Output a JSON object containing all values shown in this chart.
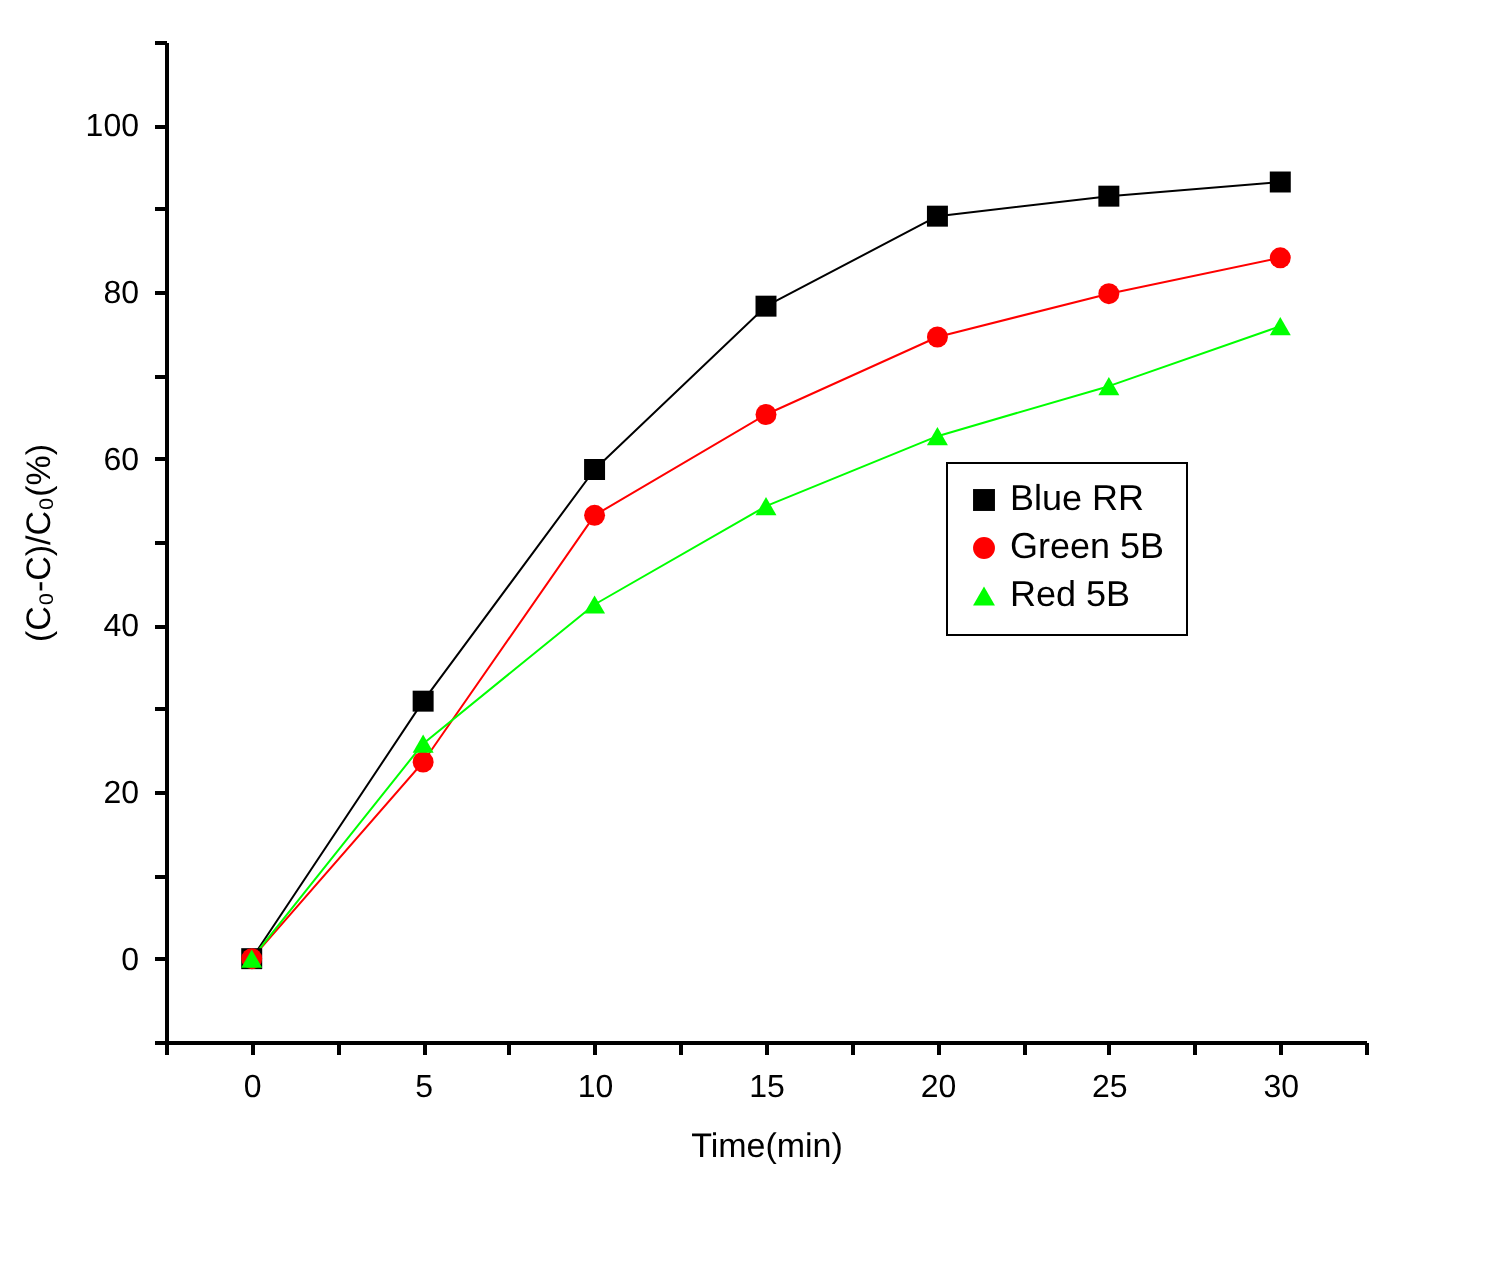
{
  "chart_data": {
    "type": "line",
    "xlabel": "Time(min)",
    "ylabel": "(C₀-C)/C₀(%)",
    "x": [
      0,
      5,
      10,
      15,
      20,
      25,
      30
    ],
    "series": [
      {
        "name": "Blue RR",
        "color": "#000000",
        "marker": "square",
        "values": [
          0,
          30.9,
          58.7,
          78.3,
          89.1,
          91.5,
          93.2
        ]
      },
      {
        "name": "Green 5B",
        "color": "#ff0000",
        "marker": "circle",
        "values": [
          0,
          23.6,
          53.2,
          65.3,
          74.6,
          79.8,
          84.1
        ]
      },
      {
        "name": "Red 5B",
        "color": "#00ff00",
        "marker": "triangle",
        "values": [
          0,
          25.8,
          42.5,
          54.3,
          62.7,
          68.7,
          75.9
        ]
      }
    ],
    "xlim": [
      -2.5,
      32.5
    ],
    "xticks": [
      {
        "value": -2.5,
        "label": null
      },
      0,
      {
        "value": 2.5,
        "label": null
      },
      5,
      {
        "value": 7.5,
        "label": null
      },
      10,
      {
        "value": 12.5,
        "label": null
      },
      15,
      {
        "value": 17.5,
        "label": null
      },
      20,
      {
        "value": 22.5,
        "label": null
      },
      25,
      {
        "value": 27.5,
        "label": null
      },
      30,
      {
        "value": 32.5,
        "label": null
      }
    ],
    "ylim": [
      -10,
      110
    ],
    "yticks": [
      {
        "value": -10,
        "label": null
      },
      0,
      {
        "value": 10,
        "label": null
      },
      20,
      {
        "value": 30,
        "label": null
      },
      40,
      {
        "value": 50,
        "label": null
      },
      60,
      {
        "value": 70,
        "label": null
      },
      80,
      {
        "value": 90,
        "label": null
      },
      100,
      {
        "value": 110,
        "label": null
      }
    ],
    "grid": false,
    "legend": "right",
    "line_style": "solid"
  }
}
